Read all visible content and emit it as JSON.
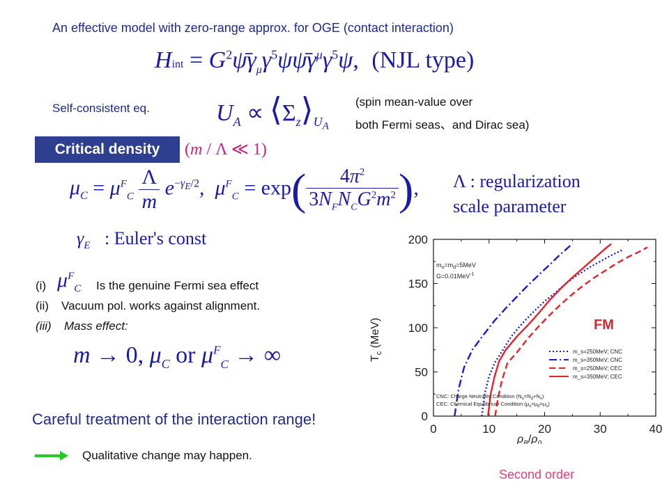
{
  "intro_text": "An effective model with zero-range approx. for OGE (contact interaction)",
  "njl_label": "(NJL type)",
  "self_consistent_label": "Self-consistent eq.",
  "spin_note_line1": "(spin mean-value over",
  "spin_note_line2": " both Fermi seas、and Dirac sea)",
  "critical_density_label": "Critical density",
  "lambda_label_line1": "Λ : regularization",
  "lambda_label_line2": "scale parameter",
  "euler_label": ": Euler's const",
  "effects": [
    {
      "marker": "(i)",
      "text": "Is the genuine Fermi sea effect"
    },
    {
      "marker": "(ii)",
      "text": "Vacuum pol. works against alignment."
    },
    {
      "marker": "(iii)",
      "text": "Mass effect:"
    }
  ],
  "careful_text": "Careful treatment of the interaction range!",
  "qualitative_text": "Qualitative change may happen.",
  "second_order_label": "Second order",
  "colors": {
    "navy": "#1f2a8a",
    "blue": "#1a1aa8",
    "red": "#e8202a",
    "green": "#22cc22",
    "pink": "#e0407a"
  },
  "chart_data": {
    "type": "line",
    "xlim": [
      0,
      40
    ],
    "ylim": [
      0,
      200
    ],
    "x_ticks": [
      "0",
      "10",
      "20",
      "30",
      "40"
    ],
    "y_ticks": [
      "0",
      "50",
      "100",
      "150",
      "200"
    ],
    "ylabel": "T_c (MeV)",
    "xlabel": "ρ_B/ρ_0",
    "params_line1": "m_u=m_d=5MeV",
    "params_line2": "G=0.01MeV^-1",
    "annotation": "FM",
    "legend_position": "lower-right",
    "series": [
      {
        "name": "m_s=250MeV; CNC",
        "color": "#1a1acc",
        "dash": "dotted",
        "x": [
          8.7,
          9.2,
          10,
          11,
          12.5,
          14,
          16,
          18,
          20,
          22,
          24,
          26,
          28,
          30,
          32,
          34
        ],
        "y": [
          0,
          25,
          45,
          60,
          75,
          90,
          105,
          118,
          130,
          140,
          151,
          160,
          168,
          175,
          182,
          188
        ]
      },
      {
        "name": "m_s=350MeV; CNC",
        "color": "#1a1acc",
        "dash": "dashdot",
        "x": [
          3.8,
          4.5,
          5.5,
          7,
          9,
          11,
          13,
          15,
          17,
          19,
          21,
          23,
          25
        ],
        "y": [
          0,
          30,
          55,
          75,
          92,
          108,
          122,
          135,
          148,
          160,
          172,
          184,
          195
        ]
      },
      {
        "name": "m_s=250MeV; CEC",
        "color": "#e8202a",
        "dash": "dashed",
        "x": [
          11.1,
          11.6,
          12.3,
          13.3,
          15,
          17,
          19,
          21,
          23,
          25,
          27,
          29,
          31,
          33,
          35,
          37,
          38.5
        ],
        "y": [
          0,
          20,
          40,
          60,
          72,
          88,
          102,
          115,
          127,
          138,
          148,
          157,
          165,
          173,
          180,
          186,
          191
        ]
      },
      {
        "name": "m_s=350MeV; CEC",
        "color": "#e8202a",
        "dash": "solid",
        "x": [
          9.8,
          10.3,
          11,
          11.8,
          13,
          15,
          17,
          19,
          21,
          23,
          25,
          27,
          29,
          31,
          32
        ],
        "y": [
          0,
          25,
          45,
          62,
          75,
          90,
          103,
          117,
          132,
          145,
          157,
          168,
          179,
          190,
          195
        ]
      }
    ],
    "footnotes": [
      "CNC: Charge Neutrality Condition (N_u=N_d+N_s)",
      "CEC: Chemical Equilibrium Condition (μ_u=μ_d=μ_s)"
    ]
  }
}
